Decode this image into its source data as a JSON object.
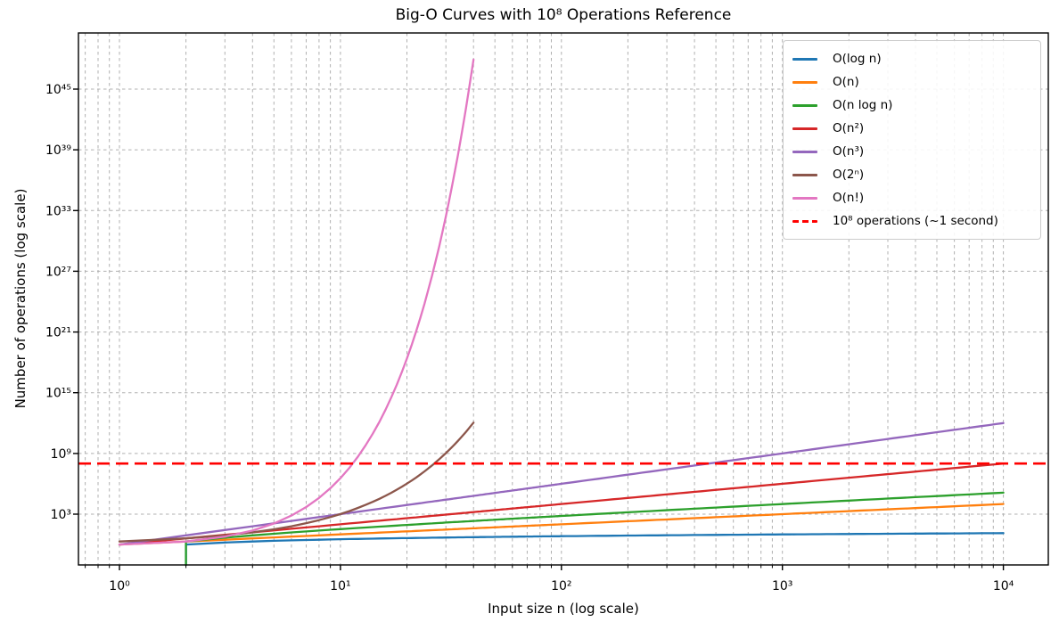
{
  "title": "Big-O Curves with 10⁸ Operations Reference",
  "axes": {
    "xlabel": "Input size n (log scale)",
    "ylabel": "Number of operations (log scale)"
  },
  "chart_data": {
    "type": "line",
    "title": "Big-O Curves with 10⁸ Operations Reference",
    "xlabel": "Input size n (log scale)",
    "ylabel": "Number of operations (log scale)",
    "x_scale": "log",
    "y_scale": "log",
    "x_tick_labels": [
      "10⁰",
      "10¹",
      "10²",
      "10³",
      "10⁴"
    ],
    "x_tick_exps": [
      0,
      1,
      2,
      3,
      4
    ],
    "y_tick_labels": [
      "10³",
      "10⁹",
      "10¹⁵",
      "10²¹",
      "10²⁷",
      "10³³",
      "10³⁹",
      "10⁴⁵"
    ],
    "y_tick_exps": [
      3,
      9,
      15,
      21,
      27,
      33,
      39,
      45
    ],
    "xlim_exp": [
      -0.19,
      4.2
    ],
    "ylim_exp": [
      -2.0,
      50.5
    ],
    "grid": {
      "which": "both",
      "style": "dashed",
      "color": "#b0b0b0"
    },
    "legend_location": "upper right",
    "series": [
      {
        "label": "O(log n)",
        "key": "log2",
        "fn": "log2(n)",
        "color": "#1f77b4",
        "n_range": [
          1,
          10000
        ]
      },
      {
        "label": "O(n)",
        "key": "n",
        "fn": "n",
        "color": "#ff7f0e",
        "n_range": [
          1,
          10000
        ]
      },
      {
        "label": "O(n log n)",
        "key": "nlog2",
        "fn": "n·log2(n)",
        "color": "#2ca02c",
        "n_range": [
          1,
          10000
        ]
      },
      {
        "label": "O(n²)",
        "key": "n2",
        "fn": "n^2",
        "color": "#d62728",
        "n_range": [
          1,
          10000
        ]
      },
      {
        "label": "O(n³)",
        "key": "n3",
        "fn": "n^3",
        "color": "#9467bd",
        "n_range": [
          1,
          10000
        ]
      },
      {
        "label": "O(2ⁿ)",
        "key": "2n",
        "fn": "2^n",
        "color": "#8c564b",
        "n_range": [
          1,
          40
        ]
      },
      {
        "label": "O(n!)",
        "key": "fact",
        "fn": "n!",
        "color": "#e377c2",
        "n_range": [
          1,
          40
        ]
      }
    ],
    "reference_line": {
      "label": "10⁸ operations (~1 second)",
      "value": 100000000,
      "value_exp": 8,
      "color": "#ff0000",
      "style": "dashed"
    }
  }
}
